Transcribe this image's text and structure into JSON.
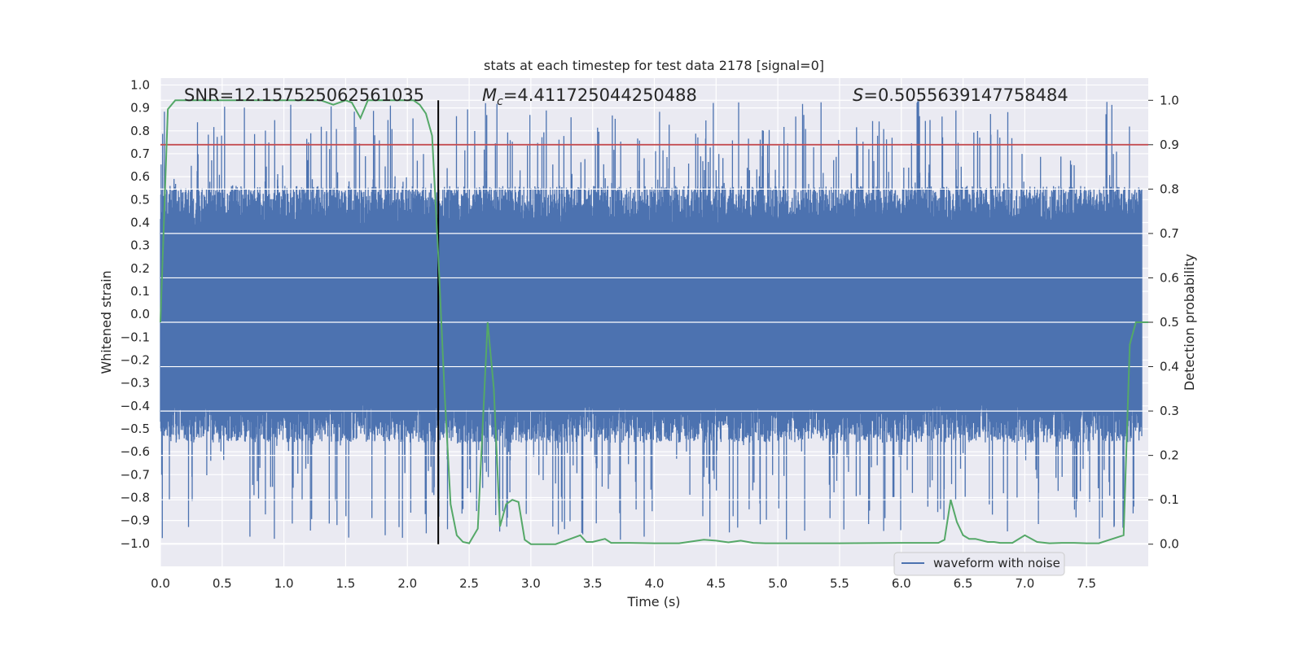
{
  "chart_data": {
    "type": "line",
    "title": "stats at each timestep for test data 2178 [signal=0]",
    "xlabel": "Time (s)",
    "ylabel": "Whitened strain",
    "y2label": "Detection probability",
    "xlim": [
      0.0,
      8.0
    ],
    "ylim": [
      -1.1,
      1.03
    ],
    "y2lim": [
      -0.05,
      1.05
    ],
    "x_ticks": [
      "0.0",
      "0.5",
      "1.0",
      "1.5",
      "2.0",
      "2.5",
      "3.0",
      "3.5",
      "4.0",
      "4.5",
      "5.0",
      "5.5",
      "6.0",
      "6.5",
      "7.0",
      "7.5"
    ],
    "y_ticks": [
      "1.0",
      "0.9",
      "0.8",
      "0.7",
      "0.6",
      "0.5",
      "0.4",
      "0.3",
      "0.2",
      "0.1",
      "0.0",
      "−0.1",
      "−0.2",
      "−0.3",
      "−0.4",
      "−0.5",
      "−0.6",
      "−0.7",
      "−0.8",
      "−0.9",
      "−1.0"
    ],
    "y2_ticks": [
      "1.0",
      "0.9",
      "0.8",
      "0.7",
      "0.6",
      "0.5",
      "0.4",
      "0.3",
      "0.2",
      "0.1",
      "0.0"
    ],
    "annotations": {
      "snr": "SNR=12.157525062561035",
      "mc_symbol": "M",
      "mc_sub": "c",
      "mc_value": "=4.411725044250488",
      "s_symbol": "S",
      "s_value": "=0.5055639147758484"
    },
    "threshold": 0.9,
    "event_time": 2.25,
    "legend": [
      "waveform with noise"
    ],
    "legend_position": "lower-right",
    "grid": true,
    "colors": {
      "background": "#eaeaf2",
      "waveform": "#4c72b0",
      "probability": "#55a868",
      "threshold": "#c44e52",
      "event_line": "#000000",
      "grid": "#ffffff"
    },
    "series": [
      {
        "name": "waveform with noise",
        "axis": "left",
        "envelope_core": [
          -0.38,
          0.38
        ],
        "spike_max": 0.93,
        "spike_min": -0.99
      },
      {
        "axis": "right",
        "x": [
          0.0,
          0.06,
          0.12,
          0.2,
          0.3,
          0.5,
          0.7,
          0.9,
          1.1,
          1.2,
          1.3,
          1.4,
          1.5,
          1.55,
          1.62,
          1.68,
          1.75,
          1.85,
          1.95,
          2.05,
          2.1,
          2.15,
          2.2,
          2.25,
          2.3,
          2.35,
          2.4,
          2.45,
          2.5,
          2.57,
          2.65,
          2.7,
          2.75,
          2.8,
          2.85,
          2.9,
          2.95,
          3.0,
          3.1,
          3.2,
          3.3,
          3.4,
          3.45,
          3.5,
          3.6,
          3.65,
          3.8,
          4.0,
          4.2,
          4.4,
          4.5,
          4.6,
          4.7,
          4.8,
          4.9,
          5.0,
          5.2,
          5.5,
          6.0,
          6.3,
          6.35,
          6.4,
          6.45,
          6.5,
          6.55,
          6.6,
          6.7,
          6.75,
          6.8,
          6.9,
          7.0,
          7.1,
          7.2,
          7.3,
          7.4,
          7.5,
          7.6,
          7.8,
          7.85,
          7.9,
          7.95,
          8.0
        ],
        "values": [
          0.5,
          0.98,
          1.0,
          1.0,
          1.0,
          1.0,
          1.0,
          1.0,
          1.0,
          1.0,
          1.0,
          0.99,
          1.0,
          0.995,
          0.96,
          1.0,
          1.0,
          1.0,
          1.0,
          1.0,
          0.99,
          0.97,
          0.92,
          0.65,
          0.35,
          0.09,
          0.02,
          0.005,
          0.002,
          0.035,
          0.5,
          0.35,
          0.04,
          0.09,
          0.1,
          0.095,
          0.01,
          0.0,
          0.0,
          0.0,
          0.01,
          0.02,
          0.005,
          0.005,
          0.012,
          0.003,
          0.003,
          0.002,
          0.002,
          0.01,
          0.008,
          0.004,
          0.008,
          0.003,
          0.002,
          0.002,
          0.002,
          0.002,
          0.003,
          0.003,
          0.01,
          0.1,
          0.05,
          0.02,
          0.012,
          0.012,
          0.005,
          0.005,
          0.003,
          0.003,
          0.02,
          0.005,
          0.002,
          0.003,
          0.003,
          0.002,
          0.002,
          0.02,
          0.45,
          0.5,
          0.5,
          0.5
        ]
      }
    ]
  }
}
